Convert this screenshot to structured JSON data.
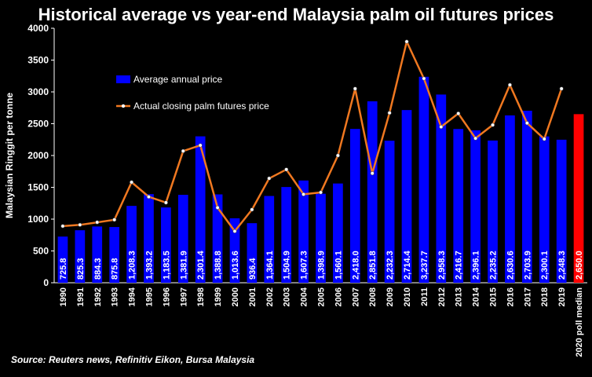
{
  "chart_data": {
    "type": "bar",
    "title": "Historical average vs year-end Malaysia palm oil futures prices",
    "ylabel": "Malaysian Ringgit per tonne",
    "xlabel": "",
    "ylim": [
      0,
      4000
    ],
    "yticks": [
      0,
      500,
      1000,
      1500,
      2000,
      2500,
      3000,
      3500,
      4000
    ],
    "grid": false,
    "legend_position": "top-left",
    "categories": [
      "1990",
      "1991",
      "1992",
      "1993",
      "1994",
      "1995",
      "1996",
      "1997",
      "1998",
      "1999",
      "2000",
      "2001",
      "2002",
      "2003",
      "2004",
      "2005",
      "2006",
      "2007",
      "2008",
      "2009",
      "2010",
      "2011",
      "2012",
      "2013",
      "2014",
      "2015",
      "2016",
      "2017",
      "2018",
      "2019",
      "2020 poll median"
    ],
    "series": [
      {
        "name": "Average annual price",
        "kind": "bar",
        "color": "#0000FF",
        "values": [
          725.8,
          825.3,
          884.3,
          875.8,
          1208.3,
          1393.2,
          1183.5,
          1381.9,
          2301.4,
          1388.8,
          1013.6,
          936.4,
          1364.1,
          1504.9,
          1607.3,
          1398.9,
          1560.1,
          2418.0,
          2851.8,
          2232.3,
          2714.4,
          3237.7,
          2958.3,
          2416.7,
          2396.1,
          2235.2,
          2630.6,
          2703.9,
          2300.1,
          2248.3,
          null
        ],
        "labels": [
          "725.8",
          "825.3",
          "884.3",
          "875.8",
          "1,208.3",
          "1,393.2",
          "1,183.5",
          "1,381.9",
          "2,301.4",
          "1,388.8",
          "1,013.6",
          "936.4",
          "1,364.1",
          "1,504.9",
          "1,607.3",
          "1,398.9",
          "1,560.1",
          "2,418.0",
          "2,851.8",
          "2,232.3",
          "2,714.4",
          "3,237.7",
          "2,958.3",
          "2,416.7",
          "2,396.1",
          "2,235.2",
          "2,630.6",
          "2,703.9",
          "2,300.1",
          "2,248.3",
          ""
        ]
      },
      {
        "name": "Actual closing palm futures price",
        "kind": "line",
        "color": "#F07820",
        "values": [
          890,
          910,
          950,
          990,
          1580,
          1350,
          1260,
          2070,
          2160,
          1180,
          810,
          1150,
          1640,
          1780,
          1390,
          1420,
          2000,
          3050,
          1720,
          2670,
          3790,
          3210,
          2450,
          2660,
          2270,
          2480,
          3110,
          2510,
          2260,
          3050,
          null
        ]
      },
      {
        "name": "2020 poll median",
        "kind": "bar",
        "color": "#FF0000",
        "values": [
          null,
          null,
          null,
          null,
          null,
          null,
          null,
          null,
          null,
          null,
          null,
          null,
          null,
          null,
          null,
          null,
          null,
          null,
          null,
          null,
          null,
          null,
          null,
          null,
          null,
          null,
          null,
          null,
          null,
          null,
          2650.0
        ],
        "labels": [
          "",
          "",
          "",
          "",
          "",
          "",
          "",
          "",
          "",
          "",
          "",
          "",
          "",
          "",
          "",
          "",
          "",
          "",
          "",
          "",
          "",
          "",
          "",
          "",
          "",
          "",
          "",
          "",
          "",
          "",
          "2,650.0"
        ]
      }
    ],
    "source": "Source: Reuters news, Refinitiv Eikon, Bursa Malaysia"
  }
}
